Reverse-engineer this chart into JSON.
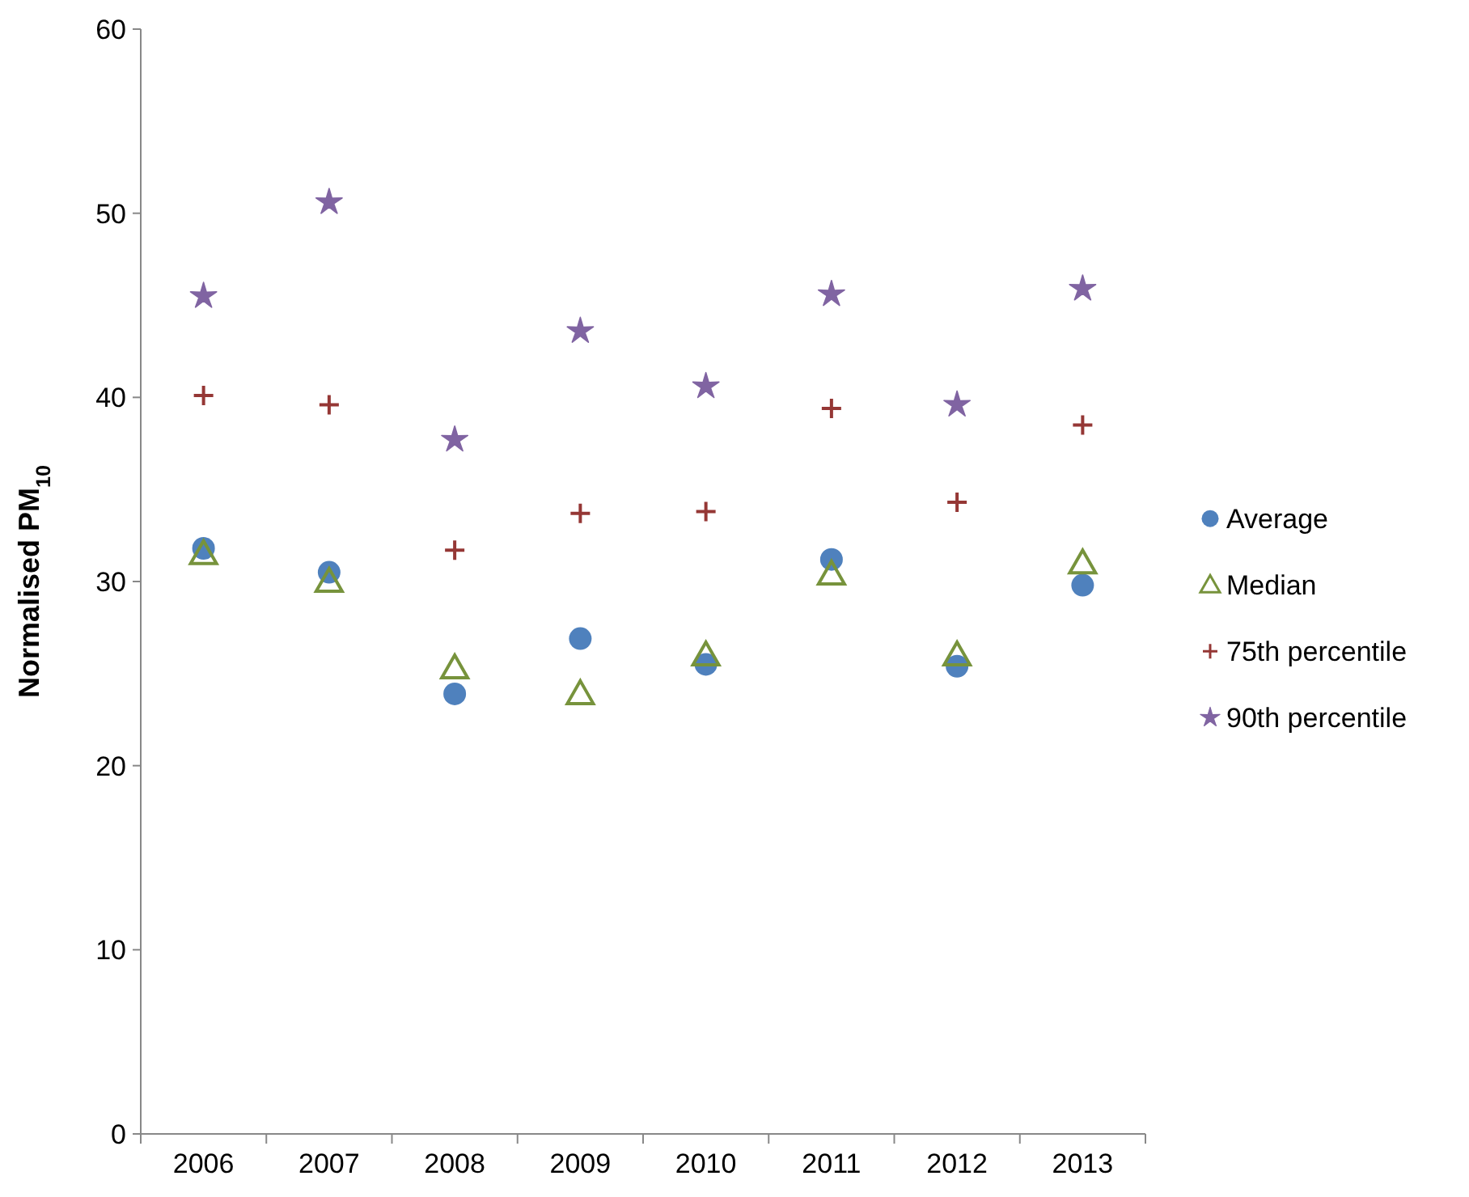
{
  "chart_data": {
    "type": "scatter",
    "ylabel": "Normalised PM$_{10}$",
    "categories": [
      "2006",
      "2007",
      "2008",
      "2009",
      "2010",
      "2011",
      "2012",
      "2013"
    ],
    "ylim": [
      0,
      60
    ],
    "yticks": [
      0,
      10,
      20,
      30,
      40,
      50,
      60
    ],
    "grid": false,
    "legend": "right",
    "series": [
      {
        "name": "Average",
        "color": "#4f81bd",
        "marker": "circle",
        "values": [
          31.8,
          30.5,
          23.9,
          26.9,
          25.5,
          31.2,
          25.4,
          29.8
        ]
      },
      {
        "name": "Median",
        "color": "#77933c",
        "marker": "triangle",
        "values": [
          31.5,
          30.0,
          25.3,
          23.9,
          26.0,
          30.4,
          26.0,
          31.0
        ]
      },
      {
        "name": "75th percentile",
        "color": "#953735",
        "marker": "cross",
        "values": [
          40.1,
          39.6,
          31.7,
          33.7,
          33.8,
          39.4,
          34.3,
          38.5
        ]
      },
      {
        "name": "90th percentile",
        "color": "#8064a2",
        "marker": "star",
        "values": [
          45.5,
          50.6,
          37.7,
          43.6,
          40.6,
          45.6,
          39.6,
          45.9
        ]
      }
    ]
  }
}
